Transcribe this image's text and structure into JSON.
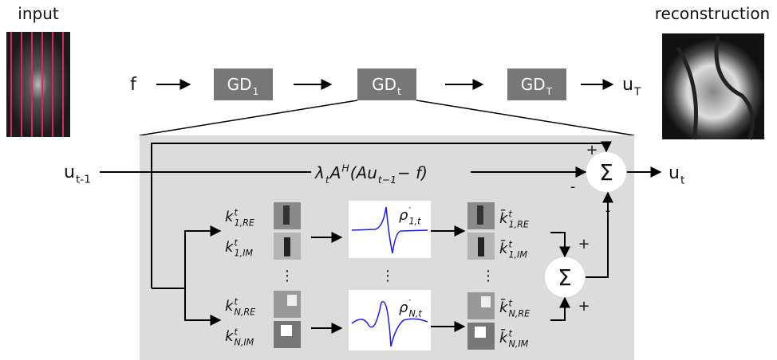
{
  "input_label": "input",
  "output_label": "reconstruction",
  "pipeline": {
    "input": "f",
    "blocks": [
      {
        "base": "GD",
        "sub": "1"
      },
      {
        "base": "GD",
        "sub": "t"
      },
      {
        "base": "GD",
        "sub": "T"
      }
    ],
    "output": {
      "base": "u",
      "sub": "T"
    }
  },
  "update": {
    "input": {
      "base": "u",
      "sub": "t-1"
    },
    "data_term": [
      {
        "base": "λ",
        "sub": "t"
      },
      {
        "base": "A",
        "sup": "H"
      },
      {
        "base": "(Au",
        "sub": "t−1"
      },
      {
        "base": " − f)"
      }
    ],
    "output": {
      "base": "u",
      "sub": "t"
    },
    "sum": "Σ",
    "signs": [
      "+",
      "-",
      "-"
    ]
  },
  "regularizer": {
    "kernels": [
      {
        "base": "k",
        "sup": "t",
        "sub": "1,RE"
      },
      {
        "base": "k",
        "sup": "t",
        "sub": "1,IM"
      },
      {
        "base": "k",
        "sup": "t",
        "sub": "N,RE"
      },
      {
        "base": "k",
        "sup": "t",
        "sub": "N,IM"
      }
    ],
    "activations": [
      {
        "base": "ρ",
        "sup": "′",
        "sub": "1,t"
      },
      {
        "base": "ρ",
        "sup": "′",
        "sub": "N,t"
      }
    ],
    "transposed_kernels": [
      {
        "base": "k̄",
        "sup": "t",
        "sub": "1,RE"
      },
      {
        "base": "k̄",
        "sup": "t",
        "sub": "1,IM"
      },
      {
        "base": "k̄",
        "sup": "t",
        "sub": "N,RE"
      },
      {
        "base": "k̄",
        "sup": "t",
        "sub": "N,IM"
      }
    ],
    "ellipses": [
      "⋮",
      "⋮",
      "⋮"
    ],
    "sum": "Σ",
    "signs": [
      "+",
      "+"
    ]
  }
}
